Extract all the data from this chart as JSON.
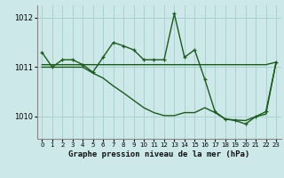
{
  "bg_color": "#cce8e8",
  "grid_color": "#aad0d0",
  "line_color": "#1a5c1a",
  "title": "Graphe pression niveau de la mer (hPa)",
  "xlim": [
    -0.5,
    23.5
  ],
  "ylim": [
    1009.55,
    1012.25
  ],
  "yticks": [
    1010,
    1011,
    1012
  ],
  "xticks": [
    0,
    1,
    2,
    3,
    4,
    5,
    6,
    7,
    8,
    9,
    10,
    11,
    12,
    13,
    14,
    15,
    16,
    17,
    18,
    19,
    20,
    21,
    22,
    23
  ],
  "curve1_x": [
    0,
    1,
    2,
    3,
    4,
    5,
    6,
    7,
    8,
    9,
    10,
    11,
    12,
    13,
    14,
    15,
    16,
    17,
    18,
    19,
    20,
    21,
    22,
    23
  ],
  "curve1_y": [
    1011.3,
    1011.0,
    1011.15,
    1011.15,
    1011.05,
    1010.9,
    1011.2,
    1011.5,
    1011.43,
    1011.35,
    1011.15,
    1011.15,
    1011.15,
    1012.08,
    1011.2,
    1011.35,
    1010.75,
    1010.1,
    1009.95,
    1009.92,
    1009.85,
    1010.0,
    1010.1,
    1011.1
  ],
  "curve2_x": [
    0,
    1,
    2,
    3,
    4,
    5,
    6,
    7,
    8,
    9,
    10,
    11,
    12,
    13,
    14,
    15,
    16,
    17,
    18,
    19,
    20,
    21,
    22,
    23
  ],
  "curve2_y": [
    1011.05,
    1011.05,
    1011.05,
    1011.05,
    1011.05,
    1011.05,
    1011.05,
    1011.05,
    1011.05,
    1011.05,
    1011.05,
    1011.05,
    1011.05,
    1011.05,
    1011.05,
    1011.05,
    1011.05,
    1011.05,
    1011.05,
    1011.05,
    1011.05,
    1011.05,
    1011.05,
    1011.1
  ],
  "curve3_x": [
    0,
    1,
    2,
    3,
    4,
    5,
    6,
    7,
    8,
    9,
    10,
    11,
    12,
    13,
    14,
    15,
    16,
    17,
    18,
    19,
    20,
    21,
    22,
    23
  ],
  "curve3_y": [
    1011.0,
    1011.0,
    1011.0,
    1011.0,
    1011.0,
    1010.88,
    1010.78,
    1010.62,
    1010.48,
    1010.33,
    1010.18,
    1010.08,
    1010.02,
    1010.02,
    1010.08,
    1010.08,
    1010.18,
    1010.08,
    1009.95,
    1009.93,
    1009.92,
    1010.0,
    1010.05,
    1011.1
  ],
  "marker": "+",
  "markersize": 3.5,
  "linewidth": 1.0
}
